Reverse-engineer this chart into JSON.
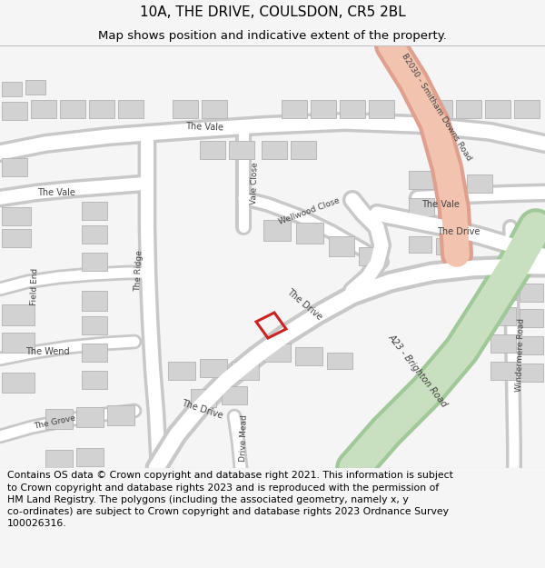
{
  "title_line1": "10A, THE DRIVE, COULSDON, CR5 2BL",
  "title_line2": "Map shows position and indicative extent of the property.",
  "footer_text": "Contains OS data © Crown copyright and database right 2021. This information is subject\nto Crown copyright and database rights 2023 and is reproduced with the permission of\nHM Land Registry. The polygons (including the associated geometry, namely x, y\nco-ordinates) are subject to Crown copyright and database rights 2023 Ordnance Survey\n100026316.",
  "bg_color": "#f5f5f5",
  "map_bg": "#e6e6e6",
  "road_white": "#ffffff",
  "road_gray": "#c8c8c8",
  "b2030_fill": "#f2c4b0",
  "b2030_edge": "#e0a090",
  "a23_fill": "#c8e0c0",
  "a23_edge": "#a0c898",
  "building_fill": "#d2d2d2",
  "building_edge": "#b8b8b8",
  "plot_color": "#cc2222",
  "title_fs": 11,
  "subtitle_fs": 9.5,
  "footer_fs": 7.8,
  "label_fs": 7.0,
  "label_sm_fs": 6.5
}
